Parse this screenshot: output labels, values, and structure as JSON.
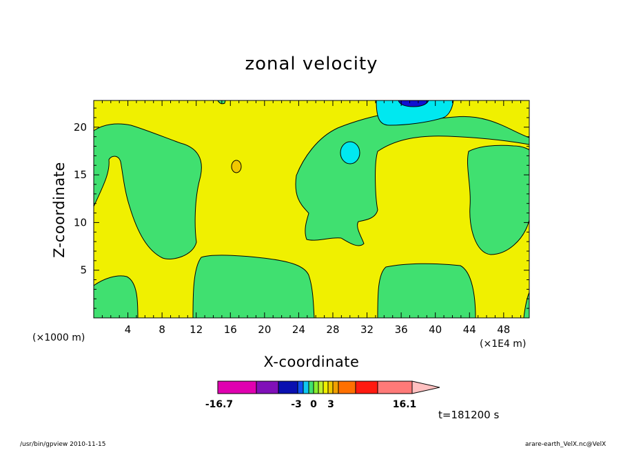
{
  "chart_data": {
    "type": "heatmap",
    "title": "zonal velocity",
    "xlabel": "X-coordinate",
    "ylabel": "Z-coordinate",
    "x_unit_note": "(×1000 m)",
    "x_unit_note_right": "(×1E4 m)",
    "x_ticks": [
      "4",
      "8",
      "12",
      "16",
      "20",
      "24",
      "28",
      "32",
      "36",
      "40",
      "44",
      "48"
    ],
    "y_ticks": [
      "5",
      "10",
      "15",
      "20"
    ],
    "xlim": [
      0,
      51
    ],
    "ylim": [
      0,
      22.8
    ],
    "colorbar": {
      "min_label": "-16.7",
      "max_label": "16.1",
      "mid_labels": [
        "-3",
        "0",
        "3"
      ],
      "colors": [
        "#e000b0",
        "#8010b8",
        "#0a10b0",
        "#1050f0",
        "#10c8f0",
        "#40e070",
        "#88ee30",
        "#c0f030",
        "#f0f000",
        "#f0c800",
        "#f0a000",
        "#ff7000",
        "#ff1a10",
        "#ff7a78",
        "#ffc0c0"
      ]
    },
    "time_label": "t=181200 s",
    "colors": {
      "background_field": "#f0f000",
      "weak_negative": "#40e070",
      "moderate_negative": "#00e8f0",
      "strong_negative": "#1010d0",
      "weak_positive": "#f0c800"
    }
  },
  "footer": {
    "left": "/usr/bin/gpview   2010-11-15",
    "right": "arare-earth_VelX.nc@VelX"
  }
}
